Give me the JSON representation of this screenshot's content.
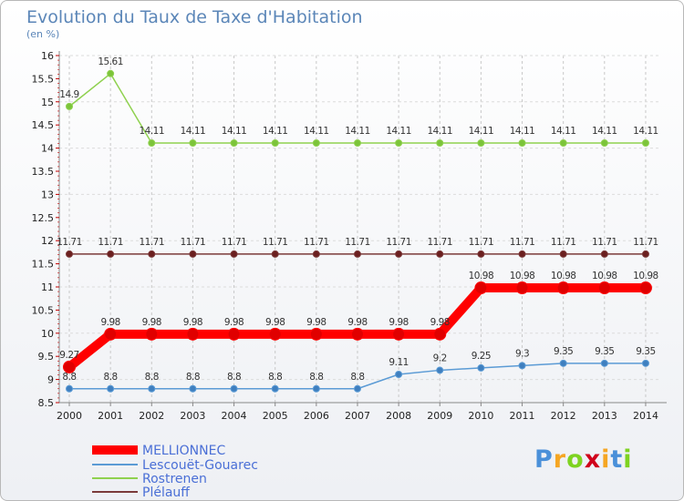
{
  "chart_data": {
    "type": "line",
    "title": "Evolution du Taux de Taxe d'Habitation",
    "ylabel": "(en %)",
    "x": [
      "2000",
      "2001",
      "2002",
      "2003",
      "2004",
      "2005",
      "2006",
      "2007",
      "2008",
      "2009",
      "2010",
      "2011",
      "2012",
      "2013",
      "2014"
    ],
    "ylim": [
      8.5,
      16
    ],
    "yticks": [
      "8.5",
      "9",
      "9.5",
      "10",
      "10.5",
      "11",
      "11.5",
      "12",
      "12.5",
      "13",
      "13.5",
      "14",
      "14.5",
      "15",
      "15.5",
      "16"
    ],
    "series": [
      {
        "name": "MELLIONNEC",
        "color": "#ff0000",
        "values": [
          9.27,
          9.98,
          9.98,
          9.98,
          9.98,
          9.98,
          9.98,
          9.98,
          9.98,
          9.98,
          10.98,
          10.98,
          10.98,
          10.98,
          10.98
        ],
        "labels": [
          "9.27",
          "9.98",
          "9.98",
          "9.98",
          "9.98",
          "9.98",
          "9.98",
          "9.98",
          "9.98",
          "9.98",
          "10.98",
          "10.98",
          "10.98",
          "10.98",
          "10.98"
        ]
      },
      {
        "name": "Lescouët-Gouarec",
        "color": "#5b9bd5",
        "values": [
          8.8,
          8.8,
          8.8,
          8.8,
          8.8,
          8.8,
          8.8,
          8.8,
          9.11,
          9.2,
          9.25,
          9.3,
          9.35,
          9.35,
          9.35
        ],
        "labels": [
          "8.8",
          "8.8",
          "8.8",
          "8.8",
          "8.8",
          "8.8",
          "8.8",
          "8.8",
          "9.11",
          "9.2",
          "9.25",
          "9.3",
          "9.35",
          "9.35",
          "9.35"
        ]
      },
      {
        "name": "Rostrenen",
        "color": "#8fd14f",
        "values": [
          14.9,
          15.61,
          14.11,
          14.11,
          14.11,
          14.11,
          14.11,
          14.11,
          14.11,
          14.11,
          14.11,
          14.11,
          14.11,
          14.11,
          14.11
        ],
        "labels": [
          "14.9",
          "15.61",
          "14.11",
          "14.11",
          "14.11",
          "14.11",
          "14.11",
          "14.11",
          "14.11",
          "14.11",
          "14.11",
          "14.11",
          "14.11",
          "14.11",
          "14.11"
        ]
      },
      {
        "name": "Plélauff",
        "color": "#7b3a3a",
        "values": [
          11.71,
          11.71,
          11.71,
          11.71,
          11.71,
          11.71,
          11.71,
          11.71,
          11.71,
          11.71,
          11.71,
          11.71,
          11.71,
          11.71,
          11.71
        ],
        "labels": [
          "11.71",
          "11.71",
          "11.71",
          "11.71",
          "11.71",
          "11.71",
          "11.71",
          "11.71",
          "11.71",
          "11.71",
          "11.71",
          "11.71",
          "11.71",
          "11.71",
          "11.71"
        ]
      }
    ]
  },
  "logo": {
    "letters": [
      "P",
      "r",
      "o",
      "x",
      "i",
      "t",
      "i"
    ],
    "colors": [
      "#4a90d9",
      "#f5a623",
      "#7ed321",
      "#d0021b",
      "#f5a623",
      "#4a90d9",
      "#7ed321"
    ]
  }
}
